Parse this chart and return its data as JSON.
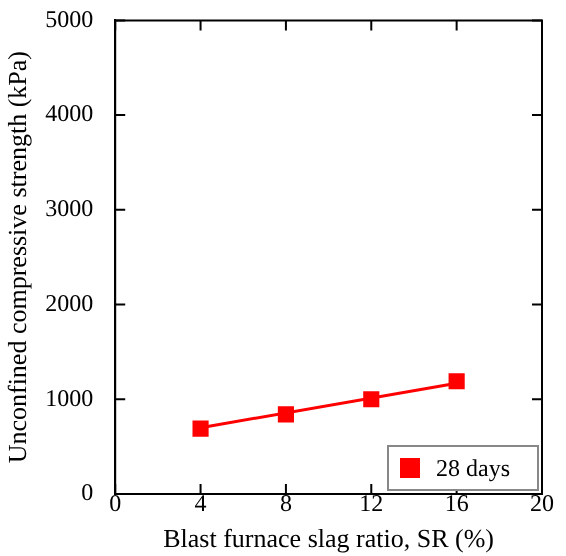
{
  "chart_data": {
    "type": "scatter",
    "xlabel": "Blast furnace slag ratio, SR (%)",
    "ylabel": "Unconfined compressive strength (kPa)",
    "xlim": [
      0,
      20
    ],
    "xticks": [
      0,
      4,
      8,
      12,
      16,
      20
    ],
    "ylim": [
      0,
      5000
    ],
    "yticks": [
      0,
      1000,
      2000,
      3000,
      4000,
      5000
    ],
    "marker": "square",
    "legend": "bottom right",
    "grid": false,
    "series": [
      {
        "name": "28 days",
        "color": "#ff0000",
        "x": [
          4,
          8,
          12,
          16
        ],
        "values": [
          690,
          840,
          1000,
          1190
        ]
      },
      {
        "type": "line",
        "color": "#ff0000",
        "x": [
          4,
          16
        ],
        "values": [
          700,
          1170
        ],
        "marker": "none"
      }
    ]
  }
}
